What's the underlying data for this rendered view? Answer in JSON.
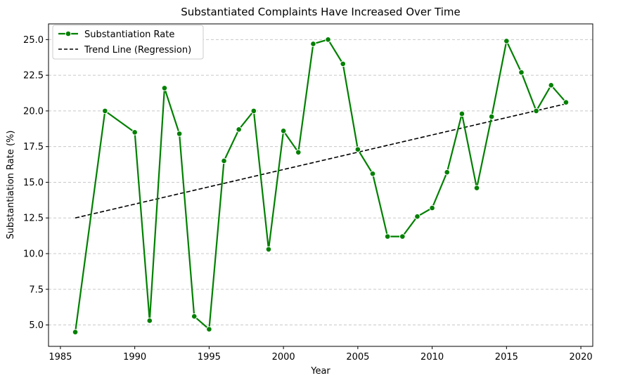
{
  "chart_data": {
    "type": "line",
    "title": "Substantiated Complaints Have Increased Over Time",
    "xlabel": "Year",
    "ylabel": "Substantiation Rate (%)",
    "xlim": [
      1984.2,
      2020.8
    ],
    "ylim": [
      3.5,
      26.1
    ],
    "xticks": [
      1985,
      1990,
      1995,
      2000,
      2005,
      2010,
      2015,
      2020
    ],
    "yticks": [
      5.0,
      7.5,
      10.0,
      12.5,
      15.0,
      17.5,
      20.0,
      22.5,
      25.0
    ],
    "ytick_labels": [
      "5.0",
      "7.5",
      "10.0",
      "12.5",
      "15.0",
      "17.5",
      "20.0",
      "22.5",
      "25.0"
    ],
    "grid": "y-dashed",
    "legend_position": "top-left",
    "series": [
      {
        "name": "Substantiation Rate",
        "color": "#008000",
        "style": "solid-with-markers",
        "x": [
          1986,
          1988,
          1990,
          1991,
          1992,
          1993,
          1994,
          1995,
          1996,
          1997,
          1998,
          1999,
          2000,
          2001,
          2002,
          2003,
          2004,
          2005,
          2006,
          2007,
          2008,
          2009,
          2010,
          2011,
          2012,
          2013,
          2014,
          2015,
          2016,
          2017,
          2018,
          2019
        ],
        "values": [
          4.5,
          20.0,
          18.5,
          5.3,
          21.6,
          18.4,
          5.6,
          4.7,
          16.5,
          18.7,
          20.0,
          10.3,
          18.6,
          17.1,
          24.7,
          25.0,
          23.3,
          17.3,
          15.6,
          11.2,
          11.2,
          12.6,
          13.2,
          15.7,
          19.8,
          14.6,
          19.6,
          24.9,
          22.7,
          20.0,
          21.8,
          20.6
        ]
      },
      {
        "name": "Trend Line (Regression)",
        "color": "#000000",
        "style": "dashed",
        "x": [
          1986,
          2019
        ],
        "values": [
          12.5,
          20.5
        ]
      }
    ]
  }
}
